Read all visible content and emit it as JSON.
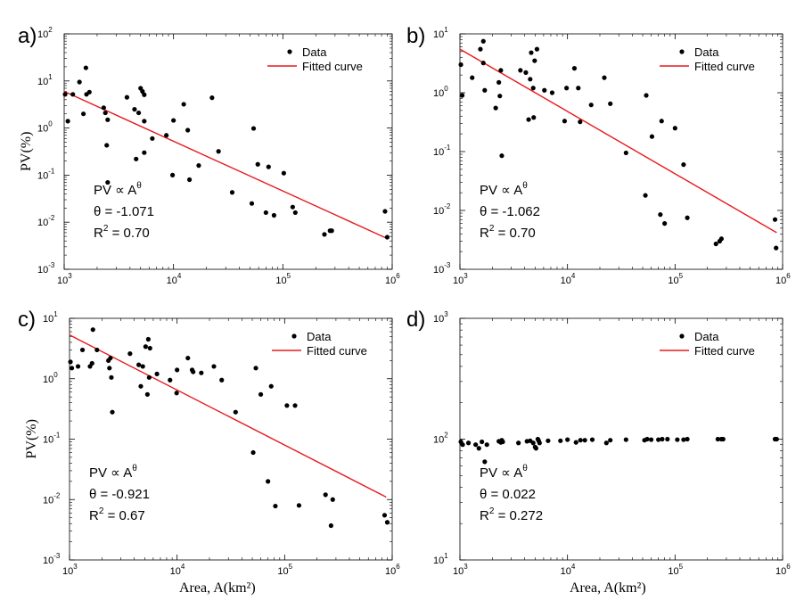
{
  "chart_data": [
    {
      "panel": "a)",
      "type": "scatter",
      "xlabel": "",
      "ylabel": "PV(%)",
      "xlim_exp": [
        3,
        6
      ],
      "ylim_exp": [
        -3,
        2
      ],
      "legend": [
        "Data",
        "Fitted curve"
      ],
      "annotation": [
        "PV ∝ A",
        "θ = -1.071",
        "R",
        "2",
        " = 0.70"
      ],
      "theta_sup": "θ",
      "fit": {
        "x": [
          1000,
          900000
        ],
        "y": [
          6.0,
          0.0045
        ]
      },
      "points": [
        [
          1020,
          5.2
        ],
        [
          1080,
          1.4
        ],
        [
          1200,
          5.2
        ],
        [
          1380,
          9.5
        ],
        [
          1500,
          2.0
        ],
        [
          1580,
          19.0
        ],
        [
          1600,
          5.2
        ],
        [
          1700,
          5.8
        ],
        [
          2300,
          2.7
        ],
        [
          2380,
          2.1
        ],
        [
          2450,
          0.43
        ],
        [
          2500,
          1.5
        ],
        [
          2500,
          0.07
        ],
        [
          3750,
          4.5
        ],
        [
          4400,
          2.5
        ],
        [
          4550,
          0.22
        ],
        [
          4800,
          2.1
        ],
        [
          5000,
          7.0
        ],
        [
          5200,
          6.0
        ],
        [
          5400,
          5.1
        ],
        [
          5400,
          1.4
        ],
        [
          5400,
          0.3
        ],
        [
          6400,
          0.6
        ],
        [
          8600,
          0.7
        ],
        [
          9800,
          0.1
        ],
        [
          10000,
          1.45
        ],
        [
          12400,
          3.2
        ],
        [
          13500,
          0.9
        ],
        [
          14000,
          0.08
        ],
        [
          17000,
          0.16
        ],
        [
          22500,
          4.4
        ],
        [
          25800,
          0.32
        ],
        [
          34400,
          0.043
        ],
        [
          52000,
          0.025
        ],
        [
          54000,
          0.98
        ],
        [
          59000,
          0.17
        ],
        [
          70000,
          0.016
        ],
        [
          74000,
          0.15
        ],
        [
          83000,
          0.014
        ],
        [
          102000,
          0.11
        ],
        [
          123000,
          0.021
        ],
        [
          130000,
          0.016
        ],
        [
          240000,
          0.0055
        ],
        [
          270000,
          0.0066
        ],
        [
          280000,
          0.0066
        ],
        [
          860000,
          0.017
        ],
        [
          900000,
          0.0048
        ]
      ]
    },
    {
      "panel": "b)",
      "type": "scatter",
      "xlabel": "",
      "ylabel": "",
      "xlim_exp": [
        3,
        6
      ],
      "ylim_exp": [
        -3,
        1
      ],
      "legend": [
        "Data",
        "Fitted curve"
      ],
      "annotation": [
        "PV ∝ A",
        "θ = -1.062",
        "R",
        "2",
        " = 0.70"
      ],
      "theta_sup": "θ",
      "fit": {
        "x": [
          1000,
          880000
        ],
        "y": [
          5.5,
          0.0042
        ]
      },
      "points": [
        [
          1020,
          3.0
        ],
        [
          1050,
          0.9
        ],
        [
          1300,
          1.8
        ],
        [
          1550,
          5.5
        ],
        [
          1650,
          7.5
        ],
        [
          1700,
          1.1
        ],
        [
          1650,
          3.2
        ],
        [
          2150,
          0.55
        ],
        [
          2300,
          1.5
        ],
        [
          2350,
          0.88
        ],
        [
          2400,
          2.4
        ],
        [
          2450,
          0.085
        ],
        [
          3650,
          2.4
        ],
        [
          4100,
          2.2
        ],
        [
          4350,
          0.35
        ],
        [
          4500,
          1.7
        ],
        [
          4600,
          4.8
        ],
        [
          4800,
          1.2
        ],
        [
          4850,
          0.38
        ],
        [
          4950,
          3.5
        ],
        [
          5200,
          5.5
        ],
        [
          6100,
          1.1
        ],
        [
          7200,
          1.0
        ],
        [
          9400,
          0.33
        ],
        [
          9800,
          1.2
        ],
        [
          11600,
          2.6
        ],
        [
          12600,
          1.2
        ],
        [
          13100,
          0.32
        ],
        [
          16600,
          0.62
        ],
        [
          22000,
          1.8
        ],
        [
          25000,
          0.65
        ],
        [
          35000,
          0.095
        ],
        [
          53000,
          0.018
        ],
        [
          54000,
          0.9
        ],
        [
          61000,
          0.18
        ],
        [
          73000,
          0.0085
        ],
        [
          75000,
          0.33
        ],
        [
          80000,
          0.006
        ],
        [
          100000,
          0.25
        ],
        [
          120000,
          0.06
        ],
        [
          130000,
          0.0075
        ],
        [
          240000,
          0.0027
        ],
        [
          260000,
          0.003
        ],
        [
          270000,
          0.0033
        ],
        [
          850000,
          0.007
        ],
        [
          870000,
          0.0023
        ]
      ]
    },
    {
      "panel": "c)",
      "type": "scatter",
      "xlabel": "Area, A(km²)",
      "ylabel": "PV(%)",
      "xlim_exp": [
        3,
        6
      ],
      "ylim_exp": [
        -3,
        1
      ],
      "legend": [
        "Data",
        "Fitted curve"
      ],
      "annotation": [
        "PV ∝ A",
        "θ = -0.921",
        "R",
        "2",
        " = 0.67"
      ],
      "theta_sup": "θ",
      "fit": {
        "x": [
          1000,
          880000
        ],
        "y": [
          5.3,
          0.011
        ]
      },
      "points": [
        [
          1020,
          1.9
        ],
        [
          1050,
          1.5
        ],
        [
          1200,
          1.6
        ],
        [
          1320,
          3.0
        ],
        [
          1550,
          1.6
        ],
        [
          1650,
          6.5
        ],
        [
          1620,
          1.8
        ],
        [
          1800,
          3.0
        ],
        [
          2300,
          2.0
        ],
        [
          2350,
          1.5
        ],
        [
          2400,
          2.2
        ],
        [
          2450,
          1.05
        ],
        [
          2500,
          0.28
        ],
        [
          3650,
          2.6
        ],
        [
          4400,
          1.7
        ],
        [
          4600,
          0.75
        ],
        [
          4800,
          1.6
        ],
        [
          5100,
          3.4
        ],
        [
          5300,
          0.55
        ],
        [
          5400,
          4.5
        ],
        [
          5500,
          1.05
        ],
        [
          5600,
          3.2
        ],
        [
          6500,
          1.2
        ],
        [
          8600,
          0.95
        ],
        [
          9900,
          0.58
        ],
        [
          10000,
          1.4
        ],
        [
          12600,
          2.2
        ],
        [
          13800,
          1.4
        ],
        [
          14100,
          1.3
        ],
        [
          16800,
          1.25
        ],
        [
          22000,
          1.6
        ],
        [
          26000,
          0.95
        ],
        [
          35000,
          0.28
        ],
        [
          51000,
          0.06
        ],
        [
          54000,
          1.5
        ],
        [
          60000,
          0.55
        ],
        [
          70000,
          0.02
        ],
        [
          75000,
          0.75
        ],
        [
          82000,
          0.0078
        ],
        [
          105000,
          0.36
        ],
        [
          125000,
          0.36
        ],
        [
          136000,
          0.008
        ],
        [
          240000,
          0.012
        ],
        [
          270000,
          0.0037
        ],
        [
          280000,
          0.01
        ],
        [
          850000,
          0.0055
        ],
        [
          900000,
          0.0042
        ]
      ]
    },
    {
      "panel": "d)",
      "type": "scatter",
      "xlabel": "Area, A(km²)",
      "ylabel": "",
      "xlim_exp": [
        3,
        6
      ],
      "ylim_exp": [
        1,
        3
      ],
      "legend": [
        "Data",
        "Fitted curve"
      ],
      "annotation": [
        "PV ∝ A",
        "θ = 0.022",
        "R",
        "2",
        " = 0.272"
      ],
      "theta_sup": "θ",
      "fit": null,
      "points": [
        [
          1020,
          95
        ],
        [
          1060,
          90
        ],
        [
          1200,
          93
        ],
        [
          1400,
          90
        ],
        [
          1500,
          84
        ],
        [
          1600,
          95
        ],
        [
          1700,
          65
        ],
        [
          1780,
          90
        ],
        [
          2300,
          96
        ],
        [
          2400,
          94
        ],
        [
          2450,
          98
        ],
        [
          2500,
          95
        ],
        [
          3500,
          93
        ],
        [
          4200,
          96
        ],
        [
          4500,
          97
        ],
        [
          4800,
          93
        ],
        [
          5000,
          86
        ],
        [
          5100,
          84
        ],
        [
          5300,
          100
        ],
        [
          5400,
          97
        ],
        [
          5500,
          93
        ],
        [
          6600,
          97
        ],
        [
          8600,
          97
        ],
        [
          10000,
          99
        ],
        [
          12000,
          94
        ],
        [
          13200,
          98
        ],
        [
          14500,
          98
        ],
        [
          17000,
          99
        ],
        [
          23000,
          93
        ],
        [
          25000,
          98
        ],
        [
          35000,
          99
        ],
        [
          52000,
          98
        ],
        [
          55000,
          100
        ],
        [
          60000,
          99
        ],
        [
          70000,
          99
        ],
        [
          76000,
          100
        ],
        [
          85000,
          100
        ],
        [
          105000,
          99
        ],
        [
          120000,
          99
        ],
        [
          130000,
          100
        ],
        [
          250000,
          100
        ],
        [
          270000,
          100
        ],
        [
          280000,
          100
        ],
        [
          850000,
          100
        ],
        [
          880000,
          100
        ]
      ]
    }
  ],
  "ticks": {
    "a_y": [
      "-3",
      "-2",
      "-1",
      "0",
      "1",
      "2"
    ],
    "bc_y": [
      "-3",
      "-2",
      "-1",
      "0",
      "1"
    ],
    "d_y": [
      "1",
      "2",
      "3"
    ],
    "x": [
      "3",
      "4",
      "5",
      "6"
    ]
  },
  "colors": {
    "fit": "#e8181d",
    "data": "#000000"
  }
}
